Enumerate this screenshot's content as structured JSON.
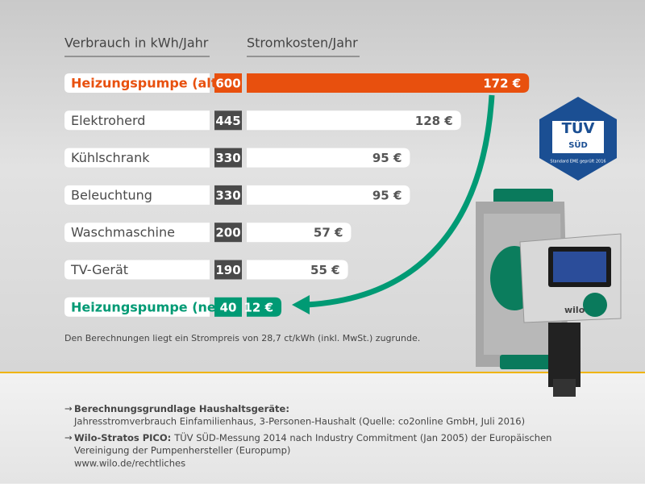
{
  "chart_data": {
    "type": "bar",
    "x_label": "Verbrauch in kWh/Jahr",
    "y_label": "Stromkosten/Jahr",
    "categories": [
      "Heizungspumpe (alt)",
      "Elektroherd",
      "Kühlschrank",
      "Beleuchtung",
      "Waschmaschine",
      "TV-Gerät",
      "Heizungspumpe (neu)"
    ],
    "series": [
      {
        "name": "Verbrauch in kWh/Jahr",
        "values": [
          600,
          445,
          330,
          330,
          200,
          190,
          40
        ],
        "colors": [
          "#e8500e",
          "#4a4a4a",
          "#4a4a4a",
          "#4a4a4a",
          "#4a4a4a",
          "#4a4a4a",
          "#009a74"
        ]
      },
      {
        "name": "Stromkosten/Jahr",
        "values": [
          172,
          128,
          95,
          95,
          57,
          55,
          12
        ],
        "value_labels": [
          "172 €",
          "128 €",
          "95 €",
          "95 €",
          "57 €",
          "55 €",
          "12 €"
        ],
        "colors": [
          "#e8500e",
          "#ffffff",
          "#ffffff",
          "#ffffff",
          "#ffffff",
          "#ffffff",
          "#009a74"
        ]
      }
    ],
    "label_colors": [
      "#e8500e",
      "#4a4a4a",
      "#4a4a4a",
      "#4a4a4a",
      "#4a4a4a",
      "#4a4a4a",
      "#009a74"
    ],
    "footnote": "Den Berechnungen liegt ein Strompreis von 28,7 ct/kWh (inkl. MwSt.) zugrunde."
  },
  "notes": [
    {
      "marker": "→",
      "heading": "Berechnungsgrundlage Haushaltsgeräte:",
      "text": "",
      "lines": [
        "Jahresstromverbrauch Einfamilienhaus, 3-Personen-Haushalt (Quelle: co2online GmbH, Juli 2016)"
      ]
    },
    {
      "marker": "→",
      "heading": "Wilo-Stratos PICO:",
      "text": "TÜV SÜD-Messung 2014 nach Industry Commitment (Jan 2005) der Europäischen",
      "lines": [
        "Vereinigung der Pumpenhersteller (Europump)",
        "www.wilo.de/rechtliches"
      ]
    }
  ],
  "badge": {
    "title": "TÜV",
    "subtitle": "SÜD",
    "caption": "Standard EME geprüft 2016"
  },
  "product": {
    "brand": "wilo"
  }
}
